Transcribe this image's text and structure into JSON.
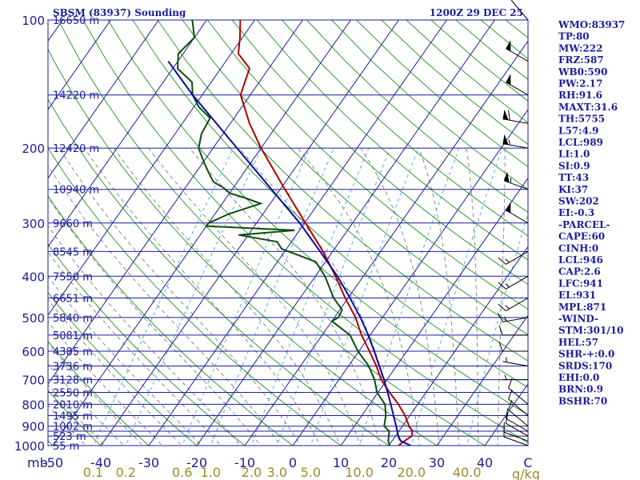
{
  "chart_data": {
    "type": "line",
    "title": "SBSM (83937) Sounding",
    "valid_time": "1200Z 29 DEC 25",
    "diagram": "Skew-T log-P",
    "pressure_levels_mb": [
      100,
      150,
      200,
      250,
      300,
      350,
      400,
      450,
      500,
      550,
      600,
      650,
      700,
      750,
      800,
      850,
      900,
      925,
      950,
      1000
    ],
    "pressure_labels": [
      "100",
      "200",
      "300",
      "400",
      "500",
      "600",
      "700",
      "800",
      "900",
      "1000"
    ],
    "height_labels": [
      {
        "p": 100,
        "text": "16650 m"
      },
      {
        "p": 150,
        "text": "14220 m"
      },
      {
        "p": 200,
        "text": "12420 m"
      },
      {
        "p": 250,
        "text": "10940 m"
      },
      {
        "p": 300,
        "text": "9660 m"
      },
      {
        "p": 350,
        "text": "8545 m"
      },
      {
        "p": 400,
        "text": "7550 m"
      },
      {
        "p": 450,
        "text": "6651 m"
      },
      {
        "p": 500,
        "text": "5840 m"
      },
      {
        "p": 550,
        "text": "5081 m"
      },
      {
        "p": 600,
        "text": "4385 m"
      },
      {
        "p": 650,
        "text": "3736 m"
      },
      {
        "p": 700,
        "text": "3128 m"
      },
      {
        "p": 750,
        "text": "2550 m"
      },
      {
        "p": 800,
        "text": "2010 m"
      },
      {
        "p": 850,
        "text": "1495 m"
      },
      {
        "p": 900,
        "text": "1002 m"
      },
      {
        "p": 950,
        "text": "523 m"
      },
      {
        "p": 1000,
        "text": "55 m"
      }
    ],
    "x_axis_label": "mb",
    "temp_ticks": [
      "-50",
      "-40",
      "-30",
      "-20",
      "-10",
      "0",
      "10",
      "20",
      "30",
      "40",
      "C"
    ],
    "mixing_ratio_ticks": [
      "0.1",
      "0.2",
      "0.6",
      "1.0",
      "2.0",
      "3.0",
      "5.0",
      "10.0",
      "20.0",
      "40.0"
    ],
    "mixing_ratio_unit": "g/kg",
    "x_range_c": [
      -50,
      50
    ],
    "y_range_mb": [
      1000,
      100
    ],
    "series": [
      {
        "name": "Temperature",
        "color": "#b00000",
        "points": [
          [
            1000,
            22.0
          ],
          [
            975,
            22.6
          ],
          [
            950,
            23.4
          ],
          [
            925,
            22.8
          ],
          [
            900,
            21.4
          ],
          [
            850,
            19.0
          ],
          [
            800,
            16.0
          ],
          [
            750,
            12.4
          ],
          [
            700,
            8.8
          ],
          [
            650,
            5.8
          ],
          [
            600,
            2.2
          ],
          [
            550,
            -1.8
          ],
          [
            500,
            -5.6
          ],
          [
            450,
            -10.6
          ],
          [
            400,
            -15.8
          ],
          [
            350,
            -22.0
          ],
          [
            300,
            -29.8
          ],
          [
            250,
            -39.0
          ],
          [
            200,
            -50.0
          ],
          [
            175,
            -56.0
          ],
          [
            150,
            -62.0
          ],
          [
            140,
            -63.0
          ],
          [
            130,
            -64.0
          ],
          [
            120,
            -68.5
          ],
          [
            110,
            -70.5
          ],
          [
            100,
            -73.0
          ]
        ]
      },
      {
        "name": "Dewpoint",
        "color": "#0b4d0b",
        "points": [
          [
            1000,
            20.2
          ],
          [
            975,
            19.2
          ],
          [
            950,
            18.6
          ],
          [
            925,
            18.0
          ],
          [
            900,
            16.2
          ],
          [
            850,
            15.0
          ],
          [
            800,
            13.2
          ],
          [
            750,
            9.8
          ],
          [
            700,
            7.4
          ],
          [
            650,
            4.2
          ],
          [
            600,
            -0.2
          ],
          [
            550,
            -4.2
          ],
          [
            510,
            -10.0
          ],
          [
            500,
            -9.2
          ],
          [
            480,
            -9.5
          ],
          [
            450,
            -13.0
          ],
          [
            400,
            -18.0
          ],
          [
            370,
            -22.0
          ],
          [
            345,
            -31.0
          ],
          [
            332,
            -33.0
          ],
          [
            320,
            -42.0
          ],
          [
            312,
            -31.0
          ],
          [
            305,
            -50.0
          ],
          [
            300,
            -50.0
          ],
          [
            285,
            -47.0
          ],
          [
            270,
            -42.0
          ],
          [
            262,
            -46.0
          ],
          [
            255,
            -50.0
          ],
          [
            248,
            -52.0
          ],
          [
            240,
            -55.0
          ],
          [
            230,
            -57.0
          ],
          [
            220,
            -59.0
          ],
          [
            210,
            -61.0
          ],
          [
            200,
            -63.0
          ],
          [
            185,
            -64.5
          ],
          [
            170,
            -65.0
          ],
          [
            160,
            -69.0
          ],
          [
            150,
            -72.0
          ],
          [
            140,
            -74.0
          ],
          [
            130,
            -79.0
          ],
          [
            120,
            -81.0
          ],
          [
            110,
            -80.0
          ],
          [
            100,
            -83.0
          ]
        ]
      },
      {
        "name": "Parcel",
        "color": "#0b0ba0",
        "points": [
          [
            1000,
            24.6
          ],
          [
            975,
            21.8
          ],
          [
            950,
            20.6
          ],
          [
            900,
            18.7
          ],
          [
            850,
            16.6
          ],
          [
            800,
            14.4
          ],
          [
            750,
            12.0
          ],
          [
            700,
            9.4
          ],
          [
            650,
            6.4
          ],
          [
            600,
            3.2
          ],
          [
            550,
            -0.4
          ],
          [
            500,
            -4.6
          ],
          [
            450,
            -9.6
          ],
          [
            400,
            -15.4
          ],
          [
            350,
            -22.6
          ],
          [
            300,
            -31.0
          ],
          [
            250,
            -41.8
          ],
          [
            200,
            -55.0
          ],
          [
            150,
            -72.0
          ],
          [
            125,
            -82.0
          ]
        ]
      }
    ],
    "wind_barbs": [
      {
        "p": 1000,
        "dir_deg": 290,
        "speed_kt": 10
      },
      {
        "p": 975,
        "dir_deg": 290,
        "speed_kt": 10
      },
      {
        "p": 950,
        "dir_deg": 300,
        "speed_kt": 10
      },
      {
        "p": 925,
        "dir_deg": 300,
        "speed_kt": 10
      },
      {
        "p": 900,
        "dir_deg": 310,
        "speed_kt": 10
      },
      {
        "p": 850,
        "dir_deg": 310,
        "speed_kt": 10
      },
      {
        "p": 800,
        "dir_deg": 310,
        "speed_kt": 10
      },
      {
        "p": 700,
        "dir_deg": 270,
        "speed_kt": 5
      },
      {
        "p": 650,
        "dir_deg": 280,
        "speed_kt": 5
      },
      {
        "p": 600,
        "dir_deg": 270,
        "speed_kt": 10
      },
      {
        "p": 550,
        "dir_deg": 270,
        "speed_kt": 10
      },
      {
        "p": 500,
        "dir_deg": 260,
        "speed_kt": 15
      },
      {
        "p": 450,
        "dir_deg": 240,
        "speed_kt": 15
      },
      {
        "p": 400,
        "dir_deg": 240,
        "speed_kt": 15
      },
      {
        "p": 350,
        "dir_deg": 240,
        "speed_kt": 15
      },
      {
        "p": 300,
        "dir_deg": 300,
        "speed_kt": 50
      },
      {
        "p": 250,
        "dir_deg": 290,
        "speed_kt": 55
      },
      {
        "p": 200,
        "dir_deg": 280,
        "speed_kt": 55
      },
      {
        "p": 175,
        "dir_deg": 280,
        "speed_kt": 60
      },
      {
        "p": 150,
        "dir_deg": 300,
        "speed_kt": 50
      },
      {
        "p": 125,
        "dir_deg": 300,
        "speed_kt": 50
      },
      {
        "p": 100,
        "dir_deg": 320,
        "speed_kt": 10
      }
    ]
  },
  "stats": [
    "WMO:83937",
    "TP:80",
    "MW:222",
    "FRZ:587",
    "WB0:590",
    "PW:2.17",
    "RH:91.6",
    "MAXT:31.6",
    "TH:5755",
    "L57:4.9",
    "LCL:989",
    "LI:1.0",
    "SI:0.9",
    "TT:43",
    "KI:37",
    "SW:202",
    "EI:-0.3",
    "-PARCEL-",
    "CAPE:60",
    "CINH:0",
    "LCL:946",
    "CAP:2.6",
    "LFC:941",
    "EL:931",
    "MPL:871",
    "-WIND-",
    "STM:301/10",
    "HEL:57",
    "SHR-+:0.0",
    "SRDS:170",
    "EHI:0.0",
    "BRN:0.9",
    "BSHR:70"
  ],
  "colors": {
    "axis_text": "#1c1c9c",
    "isobar": "#1c1c9c",
    "isotherm": "#1c1c9c",
    "dry_adiabat": "#2ea02e",
    "moist_adiabat": "#8a8a8a",
    "mixing_ratio": "#5aa8e8",
    "mixing_label": "#9c8a2a"
  }
}
